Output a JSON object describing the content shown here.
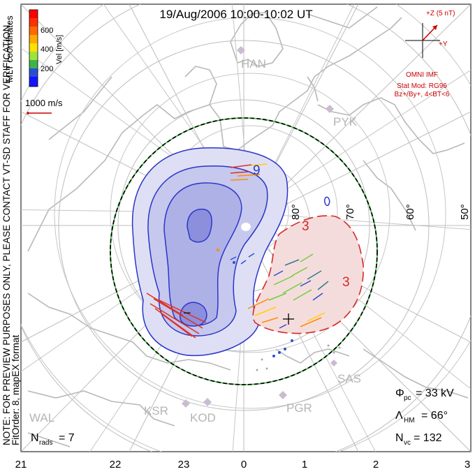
{
  "title": "19/Aug/2006 10:00-10:02 UT",
  "side_note_line1": "NOTE: FOR PREVIEW PURPOSES ONLY, PLEASE CONTACT VT-SD STAFF FOR VERIFICATION.",
  "side_note_line2": "FitOrder: 8, mapEX format",
  "mlt_coordinates": "MLT coordinates",
  "velocity_legend": {
    "label": "Vel [m/s]",
    "ticks": [
      "600",
      "400",
      "200"
    ],
    "colors": [
      "#ff0000",
      "#ff6a00",
      "#ffaa00",
      "#ffe000",
      "#9ee23c",
      "#3cb44b",
      "#2e7d8c",
      "#2a4fd6",
      "#1414ff"
    ]
  },
  "reference_vector": {
    "label": "1000 m/s",
    "color": "#cc0000"
  },
  "imf": {
    "z_label": "+Z (5 nT)",
    "y_label": "+Y",
    "source": "OMNI IMF",
    "model_line1": "Stat Mod: RG96",
    "model_line2": "Bz+/By+, 4<BT<6",
    "color": "#cc0000"
  },
  "latitude_labels": [
    "80°",
    "70°",
    "60°",
    "50°"
  ],
  "mlt_axis_labels": [
    "21",
    "22",
    "23",
    "0",
    "1",
    "2",
    "3"
  ],
  "stations": [
    "HAN",
    "PYK",
    "SAS",
    "PGR",
    "KOD",
    "KSR",
    "WAL"
  ],
  "contour_labels": {
    "negative": "9",
    "negative_min": "−",
    "positive_a": "3",
    "positive_b": "3"
  },
  "stats": {
    "phi_pc": "Φ",
    "phi_pc_sub": "pc",
    "phi_pc_value": "= 33 kV",
    "lambda_hm": "Λ",
    "lambda_hm_sub": "HM",
    "lambda_hm_value": "= 66°",
    "n_vc": "N",
    "n_vc_sub": "vc",
    "n_vc_value": "= 132",
    "n_rads": "N",
    "n_rads_sub": "rads",
    "n_rads_value": "= 7"
  },
  "colors": {
    "negative_cell": "#2a35c8",
    "positive_cell": "#d42a2a",
    "boundary": "#000000",
    "boundary_dash": "#33cc33",
    "coastline": "#b8b8b8"
  }
}
